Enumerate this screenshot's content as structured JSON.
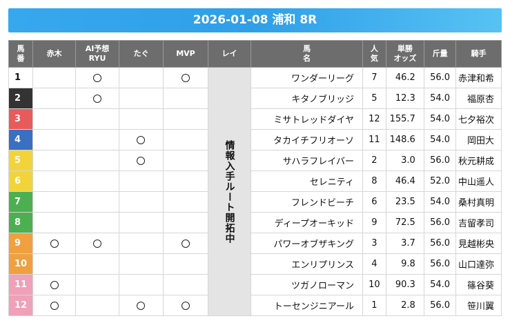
{
  "title": "2026-01-08 浦和 8R",
  "headers": {
    "num_line1": "馬",
    "num_line2": "番",
    "akagi": "赤木",
    "ai_line1": "AI予想",
    "ai_line2": "RYU",
    "tagu": "たぐ",
    "mvp": "MVP",
    "rei": "レイ",
    "horse_line1": "馬",
    "horse_line2": "名",
    "pop_line1": "人",
    "pop_line2": "気",
    "odds_line1": "単勝",
    "odds_line2": "オッズ",
    "weight": "斤量",
    "jockey": "騎手"
  },
  "rei_text": "情報入手ルート開拓中",
  "rows": [
    {
      "num": "1",
      "color": "#ffffff",
      "text_color": "#111111",
      "akagi": false,
      "ai": true,
      "tagu": false,
      "mvp": true,
      "horse": "ワンダーリーグ",
      "pop": "7",
      "odds": "46.2",
      "weight": "56.0",
      "jockey": "赤津和希"
    },
    {
      "num": "2",
      "color": "#333333",
      "text_color": "#ffffff",
      "akagi": false,
      "ai": true,
      "tagu": false,
      "mvp": false,
      "horse": "キタノブリッジ",
      "pop": "5",
      "odds": "12.3",
      "weight": "54.0",
      "jockey": "福原杏"
    },
    {
      "num": "3",
      "color": "#e85b5b",
      "text_color": "#ffffff",
      "akagi": false,
      "ai": false,
      "tagu": false,
      "mvp": false,
      "horse": "ミサトレッドダイヤ",
      "pop": "12",
      "odds": "155.7",
      "weight": "54.0",
      "jockey": "七夕裕次"
    },
    {
      "num": "4",
      "color": "#3a6fc2",
      "text_color": "#ffffff",
      "akagi": false,
      "ai": false,
      "tagu": true,
      "mvp": false,
      "horse": "タカイチフリオーソ",
      "pop": "11",
      "odds": "148.6",
      "weight": "54.0",
      "jockey": "岡田大"
    },
    {
      "num": "5",
      "color": "#f2d43a",
      "text_color": "#ffffff",
      "akagi": false,
      "ai": false,
      "tagu": true,
      "mvp": false,
      "horse": "サハラフレイバー",
      "pop": "2",
      "odds": "3.0",
      "weight": "56.0",
      "jockey": "秋元耕成"
    },
    {
      "num": "6",
      "color": "#f2d43a",
      "text_color": "#ffffff",
      "akagi": false,
      "ai": false,
      "tagu": false,
      "mvp": false,
      "horse": "セレニティ",
      "pop": "8",
      "odds": "46.4",
      "weight": "52.0",
      "jockey": "中山遥人"
    },
    {
      "num": "7",
      "color": "#4caf50",
      "text_color": "#ffffff",
      "akagi": false,
      "ai": false,
      "tagu": false,
      "mvp": false,
      "horse": "フレンドビーチ",
      "pop": "6",
      "odds": "23.5",
      "weight": "54.0",
      "jockey": "桑村真明"
    },
    {
      "num": "8",
      "color": "#4caf50",
      "text_color": "#ffffff",
      "akagi": false,
      "ai": false,
      "tagu": false,
      "mvp": false,
      "horse": "ディープオーキッド",
      "pop": "9",
      "odds": "72.5",
      "weight": "56.0",
      "jockey": "吉留孝司"
    },
    {
      "num": "9",
      "color": "#f0a040",
      "text_color": "#ffffff",
      "akagi": true,
      "ai": true,
      "tagu": false,
      "mvp": true,
      "horse": "パワーオブザキング",
      "pop": "3",
      "odds": "3.7",
      "weight": "56.0",
      "jockey": "見越彬央"
    },
    {
      "num": "10",
      "color": "#f0a040",
      "text_color": "#ffffff",
      "akagi": false,
      "ai": false,
      "tagu": false,
      "mvp": false,
      "horse": "エンリプリンス",
      "pop": "4",
      "odds": "9.8",
      "weight": "56.0",
      "jockey": "山口達弥"
    },
    {
      "num": "11",
      "color": "#f0a0b8",
      "text_color": "#ffffff",
      "akagi": true,
      "ai": false,
      "tagu": false,
      "mvp": false,
      "horse": "ツガノローマン",
      "pop": "10",
      "odds": "90.3",
      "weight": "54.0",
      "jockey": "篠谷葵"
    },
    {
      "num": "12",
      "color": "#f0a0b8",
      "text_color": "#ffffff",
      "akagi": true,
      "ai": false,
      "tagu": true,
      "mvp": true,
      "horse": "トーセンジニアール",
      "pop": "1",
      "odds": "2.8",
      "weight": "56.0",
      "jockey": "笹川翼"
    }
  ]
}
